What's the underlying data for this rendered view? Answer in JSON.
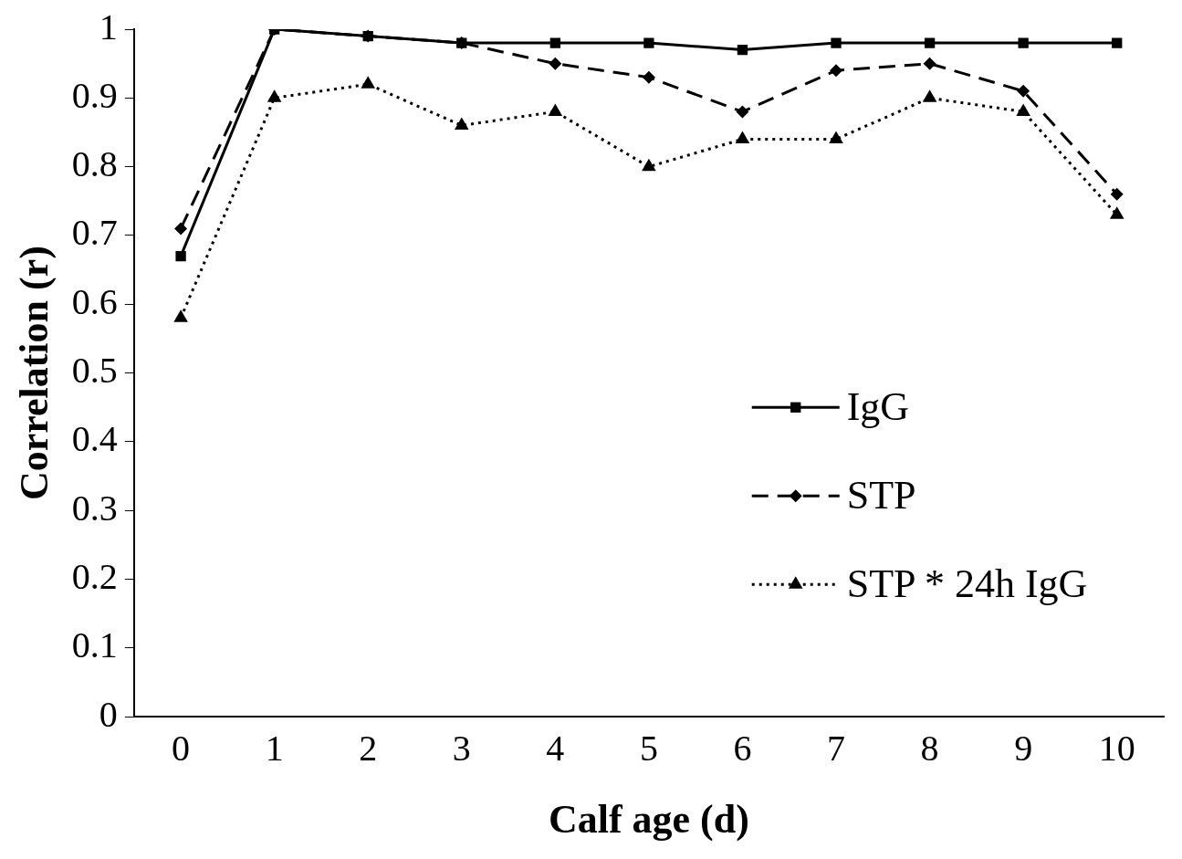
{
  "chart_data": {
    "type": "line",
    "xlabel": "Calf age (d)",
    "ylabel": "Correlation (r)",
    "categories": [
      "0",
      "1",
      "2",
      "3",
      "4",
      "5",
      "6",
      "7",
      "8",
      "9",
      "10"
    ],
    "ylim": [
      0,
      1
    ],
    "yticks": [
      0,
      0.1,
      0.2,
      0.3,
      0.4,
      0.5,
      0.6,
      0.7,
      0.8,
      0.9,
      1
    ],
    "grid": false,
    "legend": "right",
    "series": [
      {
        "name": "IgG",
        "color": "#000000",
        "marker": "square",
        "line_style": "solid",
        "values": [
          0.67,
          1.0,
          0.99,
          0.98,
          0.98,
          0.98,
          0.97,
          0.98,
          0.98,
          0.98,
          0.98
        ]
      },
      {
        "name": "STP",
        "color": "#000000",
        "marker": "diamond",
        "line_style": "dashed",
        "values": [
          0.71,
          1.0,
          0.99,
          0.98,
          0.95,
          0.93,
          0.88,
          0.94,
          0.95,
          0.91,
          0.76
        ]
      },
      {
        "name": "STP * 24h IgG",
        "color": "#000000",
        "marker": "triangle",
        "line_style": "dotted",
        "values": [
          0.58,
          0.9,
          0.92,
          0.86,
          0.88,
          0.8,
          0.84,
          0.84,
          0.9,
          0.88,
          0.73
        ]
      }
    ]
  }
}
